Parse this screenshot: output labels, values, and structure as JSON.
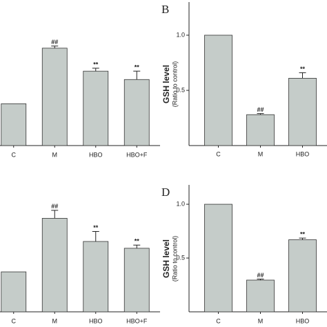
{
  "chart_data": [
    {
      "type": "bar",
      "categories": [
        "C",
        "M",
        "HBO",
        "HBO+F"
      ],
      "values": [
        1.0,
        2.33,
        1.78,
        1.58
      ],
      "errors": [
        0,
        0.05,
        0.07,
        0.2
      ],
      "annotations": [
        null,
        "##",
        "**",
        "**"
      ],
      "color": "#c5ccc9",
      "ylim": [
        0,
        3.4
      ]
    },
    {
      "type": "bar",
      "panel": "B",
      "ylabel": "GSH level",
      "ylabel_sub": "(Ratio to control)",
      "categories": [
        "C",
        "M",
        "HBO"
      ],
      "values": [
        1.0,
        0.28,
        0.61
      ],
      "errors": [
        0,
        0.01,
        0.05
      ],
      "annotations": [
        null,
        "##",
        "**"
      ],
      "color": "#c5ccc9",
      "ylim": [
        0,
        1.3
      ],
      "yticks": [
        {
          "value": 0.5,
          "label": "0.5"
        },
        {
          "value": 1.0,
          "label": "1.0"
        }
      ]
    },
    {
      "type": "bar",
      "categories": [
        "C",
        "M",
        "HBO",
        "HBO+F"
      ],
      "values": [
        1.0,
        2.34,
        1.76,
        1.59
      ],
      "errors": [
        0,
        0.2,
        0.25,
        0.08
      ],
      "annotations": [
        null,
        "##",
        "**",
        "**"
      ],
      "color": "#c5ccc9",
      "ylim": [
        0,
        3.4
      ]
    },
    {
      "type": "bar",
      "panel": "D",
      "ylabel": "GSH level",
      "ylabel_sub": "(Ratio to control)",
      "categories": [
        "C",
        "M",
        "HBO"
      ],
      "values": [
        1.0,
        0.295,
        0.67
      ],
      "errors": [
        0,
        0.01,
        0.015
      ],
      "annotations": [
        null,
        "##",
        "**"
      ],
      "color": "#c5ccc9",
      "ylim": [
        0,
        1.18
      ],
      "yticks": [
        {
          "value": 0.5,
          "label": "0.5"
        },
        {
          "value": 1.0,
          "label": "1.0"
        }
      ]
    }
  ]
}
